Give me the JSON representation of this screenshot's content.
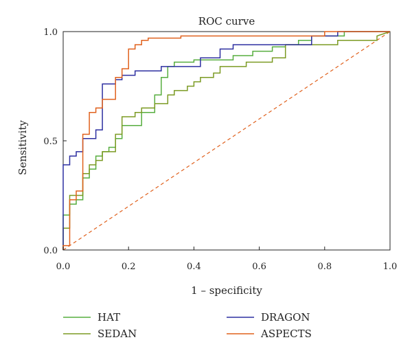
{
  "chart_data": {
    "type": "line",
    "title": "ROC curve",
    "xlabel": "1 – specificity",
    "ylabel": "Sensitivity",
    "xlim": [
      0,
      1
    ],
    "ylim": [
      0,
      1
    ],
    "xticks": [
      "0.0",
      "0.2",
      "0.4",
      "0.6",
      "0.8",
      "1.0"
    ],
    "yticks": [
      "0.0",
      "0.5",
      "1.0"
    ],
    "grid": false,
    "legend_position": "bottom",
    "reference_line": {
      "from": [
        0,
        0
      ],
      "to": [
        1,
        1
      ],
      "color": "#e0601c",
      "style": "dashed"
    },
    "series": [
      {
        "name": "HAT",
        "color": "#56ad3e",
        "x": [
          0,
          0,
          0.02,
          0.02,
          0.04,
          0.04,
          0.06,
          0.06,
          0.08,
          0.08,
          0.1,
          0.1,
          0.12,
          0.12,
          0.14,
          0.14,
          0.16,
          0.16,
          0.18,
          0.18,
          0.24,
          0.24,
          0.28,
          0.28,
          0.3,
          0.3,
          0.32,
          0.32,
          0.34,
          0.34,
          0.4,
          0.4,
          0.52,
          0.52,
          0.58,
          0.58,
          0.64,
          0.64,
          0.68,
          0.68,
          0.72,
          0.72,
          0.76,
          0.76,
          0.86,
          0.86,
          0.94,
          0.94,
          1.0
        ],
        "y": [
          0,
          0.16,
          0.16,
          0.21,
          0.21,
          0.23,
          0.23,
          0.33,
          0.33,
          0.37,
          0.37,
          0.43,
          0.43,
          0.45,
          0.45,
          0.47,
          0.47,
          0.51,
          0.51,
          0.57,
          0.57,
          0.63,
          0.63,
          0.71,
          0.71,
          0.79,
          0.79,
          0.84,
          0.84,
          0.86,
          0.86,
          0.87,
          0.87,
          0.89,
          0.89,
          0.91,
          0.91,
          0.93,
          0.93,
          0.94,
          0.94,
          0.96,
          0.96,
          0.98,
          0.98,
          1.0,
          1.0,
          1.0,
          1.0
        ]
      },
      {
        "name": "SEDAN",
        "color": "#7b9a22",
        "x": [
          0,
          0,
          0.02,
          0.02,
          0.06,
          0.06,
          0.08,
          0.08,
          0.1,
          0.1,
          0.12,
          0.12,
          0.16,
          0.16,
          0.18,
          0.18,
          0.22,
          0.22,
          0.24,
          0.24,
          0.28,
          0.28,
          0.32,
          0.32,
          0.34,
          0.34,
          0.38,
          0.38,
          0.4,
          0.4,
          0.42,
          0.42,
          0.46,
          0.46,
          0.48,
          0.48,
          0.56,
          0.56,
          0.64,
          0.64,
          0.68,
          0.68,
          0.84,
          0.84,
          0.96,
          0.96,
          1.0
        ],
        "y": [
          0,
          0.1,
          0.1,
          0.25,
          0.25,
          0.35,
          0.35,
          0.39,
          0.39,
          0.41,
          0.41,
          0.45,
          0.45,
          0.53,
          0.53,
          0.61,
          0.61,
          0.63,
          0.63,
          0.65,
          0.65,
          0.67,
          0.67,
          0.71,
          0.71,
          0.73,
          0.73,
          0.75,
          0.75,
          0.77,
          0.77,
          0.79,
          0.79,
          0.81,
          0.81,
          0.84,
          0.84,
          0.86,
          0.86,
          0.88,
          0.88,
          0.94,
          0.94,
          0.96,
          0.96,
          0.98,
          1.0
        ]
      },
      {
        "name": "DRAGON",
        "color": "#2c2ea0",
        "x": [
          0,
          0,
          0.02,
          0.02,
          0.04,
          0.04,
          0.06,
          0.06,
          0.1,
          0.1,
          0.12,
          0.12,
          0.16,
          0.16,
          0.18,
          0.18,
          0.22,
          0.22,
          0.3,
          0.3,
          0.42,
          0.42,
          0.48,
          0.48,
          0.52,
          0.52,
          0.76,
          0.76,
          0.84,
          0.84,
          1.0
        ],
        "y": [
          0,
          0.39,
          0.39,
          0.43,
          0.43,
          0.45,
          0.45,
          0.51,
          0.51,
          0.55,
          0.55,
          0.76,
          0.76,
          0.78,
          0.78,
          0.8,
          0.8,
          0.82,
          0.82,
          0.84,
          0.84,
          0.88,
          0.88,
          0.92,
          0.92,
          0.94,
          0.94,
          0.98,
          0.98,
          1.0,
          1.0
        ]
      },
      {
        "name": "ASPECTS",
        "color": "#e0601c",
        "x": [
          0,
          0,
          0.02,
          0.02,
          0.04,
          0.04,
          0.06,
          0.06,
          0.08,
          0.08,
          0.1,
          0.1,
          0.12,
          0.12,
          0.16,
          0.16,
          0.18,
          0.18,
          0.2,
          0.2,
          0.22,
          0.22,
          0.24,
          0.24,
          0.26,
          0.26,
          0.36,
          0.36,
          0.8,
          0.8,
          1.0
        ],
        "y": [
          0,
          0.02,
          0.02,
          0.23,
          0.23,
          0.27,
          0.27,
          0.53,
          0.53,
          0.63,
          0.63,
          0.65,
          0.65,
          0.69,
          0.69,
          0.79,
          0.79,
          0.83,
          0.83,
          0.92,
          0.92,
          0.94,
          0.94,
          0.96,
          0.96,
          0.97,
          0.97,
          0.98,
          0.98,
          1.0,
          1.0
        ]
      }
    ]
  }
}
